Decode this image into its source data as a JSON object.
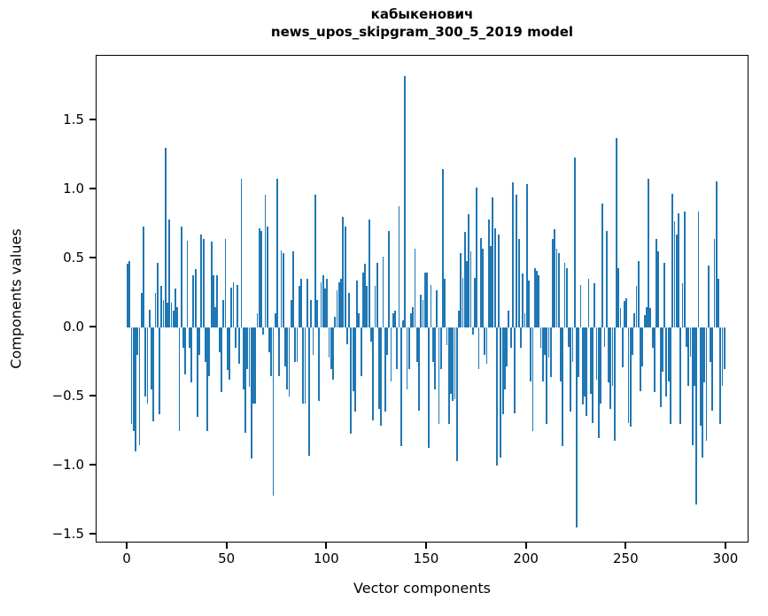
{
  "title": {
    "line1": "кабыкенович",
    "line2": "news_upos_skipgram_300_5_2019 model"
  },
  "axes": {
    "xlabel": "Vector components",
    "ylabel": "Components values",
    "x_tick_labels": [
      "0",
      "50",
      "100",
      "150",
      "200",
      "250",
      "300"
    ],
    "y_tick_labels": [
      "1.5",
      "1.0",
      "0.5",
      "0.0",
      "−0.5",
      "−1.0",
      "−1.5"
    ]
  },
  "colors": {
    "bar": "#1f77b4",
    "text": "#000000",
    "spine": "#000000",
    "background": "#ffffff"
  },
  "chart_data": {
    "type": "bar",
    "title": "кабыкенович\nnews_upos_skipgram_300_5_2019 model",
    "xlabel": "Vector components",
    "ylabel": "Components values",
    "x_ticks": [
      0,
      50,
      100,
      150,
      200,
      250,
      300
    ],
    "y_ticks": [
      1.5,
      1.0,
      0.5,
      0.0,
      -0.5,
      -1.0,
      -1.5
    ],
    "xlim": [
      -15.5,
      311.5
    ],
    "ylim": [
      -1.56,
      1.97
    ],
    "grid": false,
    "legend": false,
    "n_bars": 300,
    "values": [
      0.46,
      0.48,
      -0.7,
      -0.75,
      -0.9,
      -0.2,
      -0.85,
      0.25,
      0.73,
      -0.5,
      -0.55,
      0.13,
      -0.45,
      -0.68,
      0.25,
      0.47,
      -0.63,
      0.3,
      0.2,
      1.3,
      0.18,
      0.78,
      0.18,
      0.12,
      0.28,
      0.15,
      -0.75,
      0.73,
      -0.15,
      -0.34,
      0.63,
      -0.15,
      -0.4,
      0.38,
      0.42,
      -0.65,
      -0.2,
      0.67,
      0.64,
      -0.25,
      -0.75,
      -0.35,
      0.62,
      0.38,
      0.15,
      0.38,
      -0.18,
      -0.47,
      0.2,
      0.64,
      -0.31,
      -0.38,
      0.29,
      0.33,
      -0.15,
      0.31,
      -0.26,
      1.08,
      -0.45,
      -0.76,
      -0.3,
      -0.43,
      -0.95,
      -0.55,
      -0.55,
      0.1,
      0.72,
      0.7,
      -0.05,
      0.96,
      0.73,
      -0.18,
      -0.35,
      -1.22,
      0.1,
      1.08,
      -0.35,
      0.56,
      0.54,
      -0.28,
      -0.45,
      -0.5,
      0.2,
      0.55,
      -0.25,
      -0.25,
      0.3,
      0.35,
      -0.55,
      -0.55,
      0.35,
      -0.93,
      0.2,
      -0.2,
      0.96,
      0.2,
      -0.53,
      0.33,
      0.38,
      0.28,
      0.35,
      -0.22,
      -0.3,
      -0.38,
      0.08,
      0.27,
      0.33,
      0.35,
      0.8,
      0.73,
      -0.12,
      0.25,
      -0.77,
      -0.46,
      -0.61,
      0.34,
      0.1,
      -0.35,
      0.4,
      0.46,
      0.3,
      0.78,
      -0.1,
      -0.67,
      0.3,
      0.47,
      -0.59,
      -0.71,
      0.51,
      -0.61,
      -0.2,
      0.7,
      -0.39,
      0.1,
      0.12,
      -0.3,
      0.88,
      -0.86,
      0.05,
      1.82,
      -0.45,
      -0.3,
      0.1,
      0.15,
      0.57,
      -0.25,
      -0.6,
      0.24,
      0.2,
      0.4,
      0.4,
      -0.87,
      0.31,
      -0.25,
      -0.45,
      0.27,
      -0.7,
      -0.3,
      1.15,
      0.35,
      -0.13,
      -0.7,
      -0.48,
      -0.53,
      -0.52,
      -0.97,
      0.12,
      0.54,
      0.36,
      0.69,
      0.48,
      0.82,
      0.55,
      -0.05,
      0.36,
      1.01,
      -0.3,
      0.65,
      0.57,
      -0.2,
      -0.26,
      0.78,
      0.59,
      0.94,
      0.72,
      -1.0,
      0.67,
      -0.94,
      -0.63,
      -0.45,
      -0.28,
      0.12,
      -0.15,
      1.05,
      -0.62,
      0.96,
      0.64,
      -0.15,
      0.39,
      0.1,
      1.04,
      0.34,
      -0.39,
      -0.75,
      0.43,
      0.41,
      0.38,
      -0.15,
      -0.39,
      -0.2,
      -0.7,
      -0.22,
      -0.36,
      0.64,
      0.71,
      0.57,
      0.54,
      -0.39,
      -0.86,
      0.47,
      0.43,
      -0.14,
      -0.61,
      -0.25,
      1.23,
      -1.45,
      -0.36,
      0.31,
      -0.56,
      -0.5,
      -0.64,
      0.35,
      -0.48,
      -0.69,
      0.32,
      -0.38,
      -0.8,
      -0.55,
      0.9,
      -0.14,
      0.7,
      -0.4,
      -0.59,
      -0.42,
      -0.82,
      1.37,
      0.43,
      0.14,
      -0.29,
      0.19,
      0.21,
      -0.69,
      -0.72,
      -0.2,
      0.1,
      0.3,
      0.48,
      -0.46,
      -0.28,
      0.09,
      0.15,
      1.08,
      0.14,
      -0.15,
      -0.47,
      0.64,
      0.55,
      -0.58,
      -0.32,
      0.47,
      -0.5,
      -0.39,
      -0.7,
      0.97,
      0.77,
      0.67,
      0.83,
      -0.7,
      0.32,
      0.84,
      -0.14,
      -0.42,
      -0.21,
      -0.85,
      -0.42,
      -1.28,
      0.84,
      -0.71,
      -0.94,
      -0.4,
      -0.82,
      0.45,
      -0.25,
      -0.6,
      0.64,
      1.06,
      0.35,
      -0.7,
      -0.42,
      -0.3
    ]
  }
}
